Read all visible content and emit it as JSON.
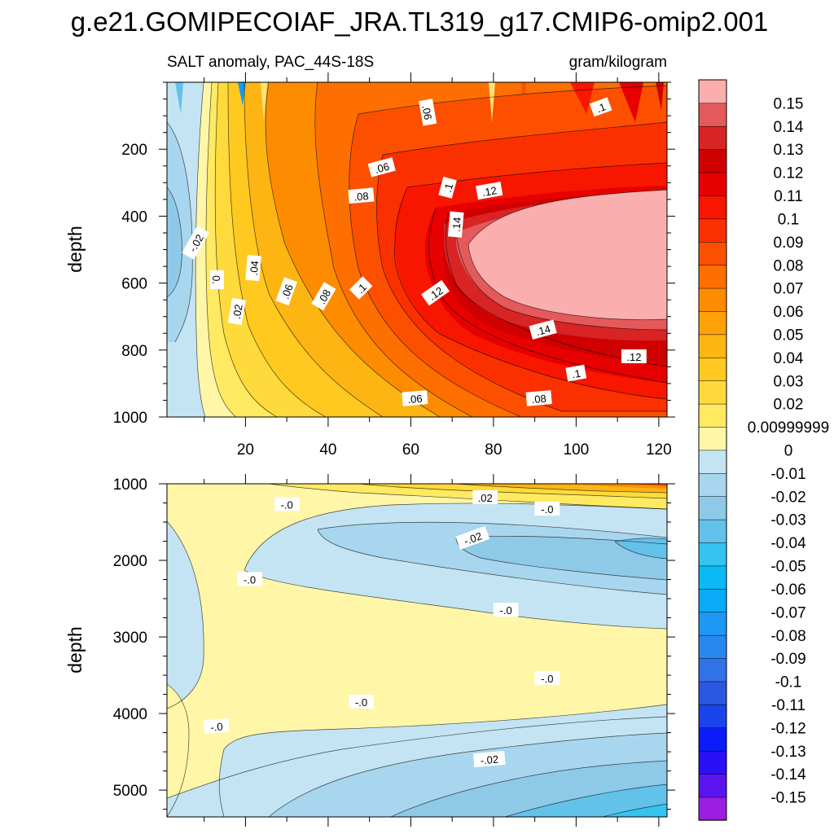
{
  "chart_data": {
    "type": "heatmap",
    "title": "g.e21.GOMIPECOIAF_JRA.TL319_g17.CMIP6-omip2.001",
    "left_string": "SALT anomaly, PAC_44S-18S",
    "right_string": "gram/kilogram",
    "xlim": [
      1,
      122
    ],
    "x_ticks": [
      20,
      40,
      60,
      80,
      100,
      120
    ],
    "panels": [
      {
        "name": "upper",
        "ylabel": "depth",
        "ylim": [
          0,
          1000
        ],
        "y_ticks": [
          200,
          400,
          600,
          800,
          1000
        ],
        "contour_labels": [
          {
            "text": ".06",
            "x": 64,
            "y": 90,
            "rot": 80
          },
          {
            "text": ".1",
            "x": 106,
            "y": 75,
            "rot": -20
          },
          {
            "text": ".06",
            "x": 53,
            "y": 255,
            "rot": -15
          },
          {
            "text": ".1",
            "x": 69,
            "y": 315,
            "rot": -75
          },
          {
            "text": ".12",
            "x": 79,
            "y": 325,
            "rot": -10
          },
          {
            "text": ".08",
            "x": 48,
            "y": 340,
            "rot": -5
          },
          {
            "text": ".14",
            "x": 71,
            "y": 425,
            "rot": -85
          },
          {
            "text": "-.02",
            "x": 8,
            "y": 480,
            "rot": -60
          },
          {
            "text": ".04",
            "x": 22,
            "y": 555,
            "rot": -85
          },
          {
            "text": "0.",
            "x": 13,
            "y": 590,
            "rot": 90
          },
          {
            "text": ".06",
            "x": 30,
            "y": 625,
            "rot": -70
          },
          {
            "text": ".1",
            "x": 48,
            "y": 615,
            "rot": -45
          },
          {
            "text": ".12",
            "x": 66,
            "y": 630,
            "rot": -35
          },
          {
            "text": ".08",
            "x": 39,
            "y": 640,
            "rot": -60
          },
          {
            "text": ".02",
            "x": 18,
            "y": 685,
            "rot": -80
          },
          {
            "text": ".14",
            "x": 92,
            "y": 740,
            "rot": -15
          },
          {
            "text": ".12",
            "x": 114,
            "y": 820,
            "rot": 0
          },
          {
            "text": ".1",
            "x": 100,
            "y": 870,
            "rot": -10
          },
          {
            "text": ".06",
            "x": 61,
            "y": 945,
            "rot": -5
          },
          {
            "text": ".08",
            "x": 91,
            "y": 945,
            "rot": -5
          }
        ]
      },
      {
        "name": "lower",
        "ylabel": "depth",
        "ylim": [
          1000,
          5350
        ],
        "y_ticks": [
          1000,
          2000,
          3000,
          4000,
          5000
        ],
        "contour_labels": [
          {
            "text": "-.0",
            "x": 30,
            "y": 1270,
            "rot": 0
          },
          {
            "text": ".02",
            "x": 78,
            "y": 1180,
            "rot": 0
          },
          {
            "text": "-.0",
            "x": 93,
            "y": 1330,
            "rot": 0
          },
          {
            "text": "-.02",
            "x": 75,
            "y": 1710,
            "rot": -20
          },
          {
            "text": "-.0",
            "x": 21,
            "y": 2250,
            "rot": 0
          },
          {
            "text": "-.0",
            "x": 83,
            "y": 2650,
            "rot": 0
          },
          {
            "text": "-.0",
            "x": 93,
            "y": 3540,
            "rot": 0
          },
          {
            "text": "-.0",
            "x": 48,
            "y": 3850,
            "rot": 0
          },
          {
            "text": "-.0",
            "x": 13,
            "y": 4170,
            "rot": -5
          },
          {
            "text": "-.02",
            "x": 79,
            "y": 4600,
            "rot": -5
          }
        ]
      }
    ],
    "colorbar": {
      "colors": [
        "#9a1fe0",
        "#5a14f0",
        "#2a10f5",
        "#0a1cfa",
        "#1a44ea",
        "#2a58e0",
        "#3272e8",
        "#2888f0",
        "#1d98f5",
        "#0aabf6",
        "#0bb9f6",
        "#35c4f0",
        "#62c2ea",
        "#8ecae8",
        "#a8d6ee",
        "#c4e4f3",
        "#fff6a8",
        "#ffea62",
        "#ffda3c",
        "#ffc920",
        "#fdb514",
        "#fda108",
        "#fe8c00",
        "#fc6f00",
        "#fc5000",
        "#fb3000",
        "#f81600",
        "#e60000",
        "#cf0000",
        "#d82424",
        "#e45a5a",
        "#fbaeae"
      ],
      "labels": [
        "-0.15",
        "-0.14",
        "-0.13",
        "-0.12",
        "-0.11",
        "-0.1",
        "-0.09",
        "-0.08",
        "-0.07",
        "-0.06",
        "-0.05",
        "-0.04",
        "-0.03",
        "-0.02",
        "-0.01",
        "0",
        "0.00999999",
        "0.02",
        "0.03",
        "0.04",
        "0.05",
        "0.06",
        "0.07",
        "0.08",
        "0.09",
        "0.1",
        "0.11",
        "0.12",
        "0.13",
        "0.14",
        "0.15"
      ]
    }
  }
}
